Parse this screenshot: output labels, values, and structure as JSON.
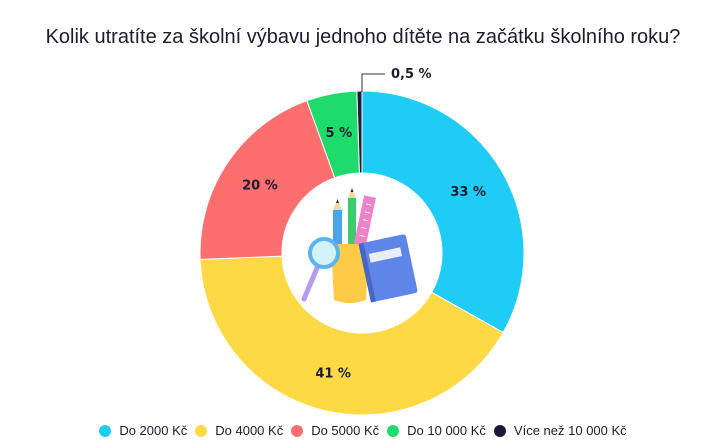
{
  "chart_data": {
    "type": "pie",
    "title": "Kolik utratíte za školní výbavu jednoho dítěte na začátku školního roku?",
    "categories": [
      "Do 2000 Kč",
      "Do 4000 Kč",
      "Do 5000 Kč",
      "Do 10 000 Kč",
      "Více než 10 000 Kč"
    ],
    "values": [
      33,
      41,
      20,
      5,
      0.5
    ],
    "labels": [
      "33 %",
      "41 %",
      "20 %",
      "5 %",
      "0,5 %"
    ],
    "colors": [
      "#1ECCF5",
      "#FDDA45",
      "#FD6F6F",
      "#1EDB6B",
      "#1A1A3A"
    ],
    "legend_position": "bottom",
    "center_image": "school-supplies-illustration"
  }
}
